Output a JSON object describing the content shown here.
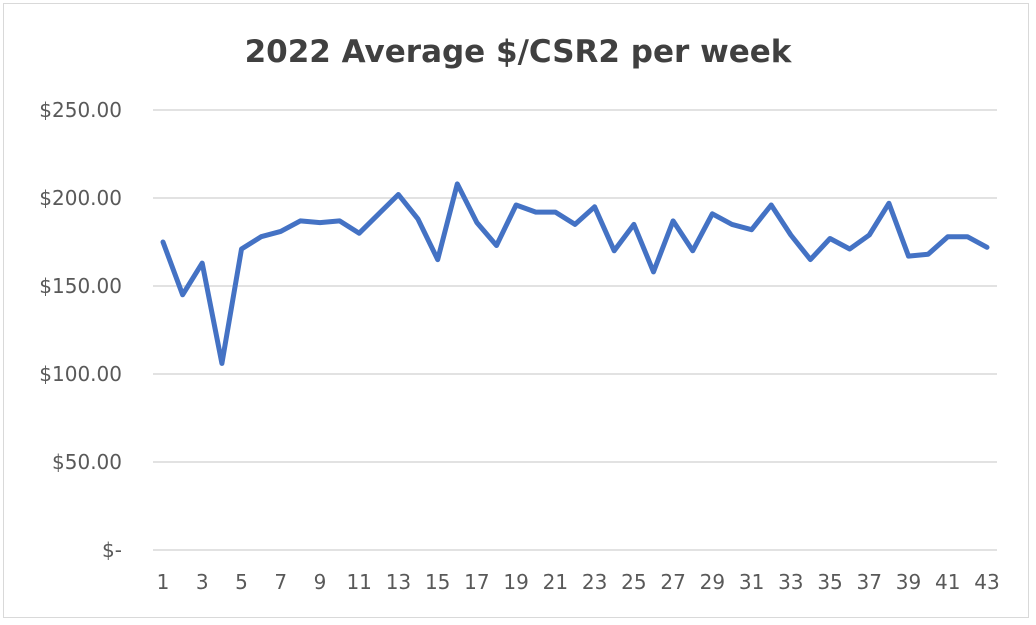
{
  "chart_data": {
    "type": "line",
    "title": "2022 Average $/CSR2 per week",
    "xlabel": "",
    "ylabel": "",
    "ylim": [
      0,
      250
    ],
    "y_ticks": [
      {
        "value": 0,
        "label": "$-"
      },
      {
        "value": 50,
        "label": "$50.00"
      },
      {
        "value": 100,
        "label": "$100.00"
      },
      {
        "value": 150,
        "label": "$150.00"
      },
      {
        "value": 200,
        "label": "$200.00"
      },
      {
        "value": 250,
        "label": "$250.00"
      }
    ],
    "x_tick_labels": [
      "1",
      "3",
      "5",
      "7",
      "9",
      "11",
      "13",
      "15",
      "17",
      "19",
      "21",
      "23",
      "25",
      "27",
      "29",
      "31",
      "33",
      "35",
      "37",
      "39",
      "41",
      "43"
    ],
    "grid": true,
    "legend": "none",
    "x": [
      1,
      2,
      3,
      4,
      5,
      6,
      7,
      8,
      9,
      10,
      11,
      12,
      13,
      14,
      15,
      16,
      17,
      18,
      19,
      20,
      21,
      22,
      23,
      24,
      25,
      26,
      27,
      28,
      29,
      30,
      31,
      32,
      33,
      34,
      35,
      36,
      37,
      38,
      39,
      40,
      41,
      42,
      43
    ],
    "series": [
      {
        "color": "#4472c4",
        "values": [
          175,
          145,
          163,
          106,
          171,
          178,
          181,
          187,
          186,
          187,
          180,
          191,
          202,
          188,
          165,
          208,
          186,
          173,
          196,
          192,
          192,
          185,
          195,
          170,
          185,
          158,
          187,
          170,
          191,
          185,
          182,
          196,
          179,
          165,
          177,
          171,
          179,
          197,
          167,
          168,
          178,
          178,
          172
        ]
      }
    ]
  }
}
